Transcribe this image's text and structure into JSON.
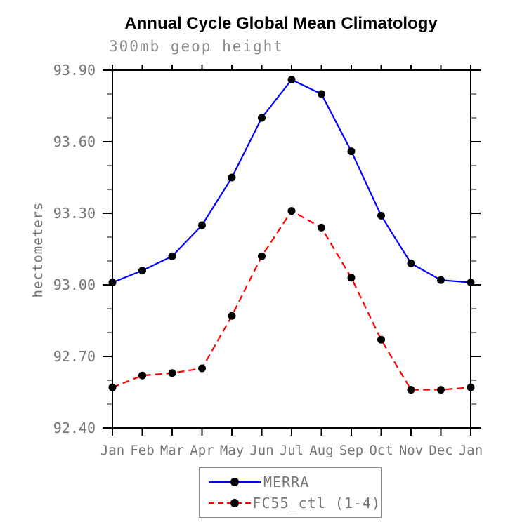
{
  "chart_data": {
    "type": "line",
    "title": "Annual Cycle Global Mean Climatology",
    "subtitle": "300mb geop height",
    "ylabel": "hectometers",
    "categories": [
      "Jan",
      "Feb",
      "Mar",
      "Apr",
      "May",
      "Jun",
      "Jul",
      "Aug",
      "Sep",
      "Oct",
      "Nov",
      "Dec",
      "Jan"
    ],
    "ylim": [
      92.4,
      93.9
    ],
    "y_tick_labels": [
      "93.90",
      "93.60",
      "93.30",
      "93.00",
      "92.70",
      "92.40"
    ],
    "y_minor_step": 0.1,
    "grid": false,
    "legend_position": "bottom-center",
    "axis_color": "#000000",
    "marker_color": "#000000",
    "series": [
      {
        "name": "MERRA",
        "color": "#0000ff",
        "style": "solid",
        "marker": "black-dot",
        "values": [
          93.01,
          93.06,
          93.12,
          93.25,
          93.45,
          93.7,
          93.86,
          93.8,
          93.56,
          93.29,
          93.09,
          93.02,
          93.01
        ]
      },
      {
        "name": "FC55_ctl (1-4)",
        "color": "#ff0000",
        "style": "dashed",
        "marker": "black-dot",
        "values": [
          92.57,
          92.62,
          92.63,
          92.65,
          92.87,
          93.12,
          93.31,
          93.24,
          93.03,
          92.77,
          92.56,
          92.56,
          92.57
        ]
      }
    ]
  }
}
